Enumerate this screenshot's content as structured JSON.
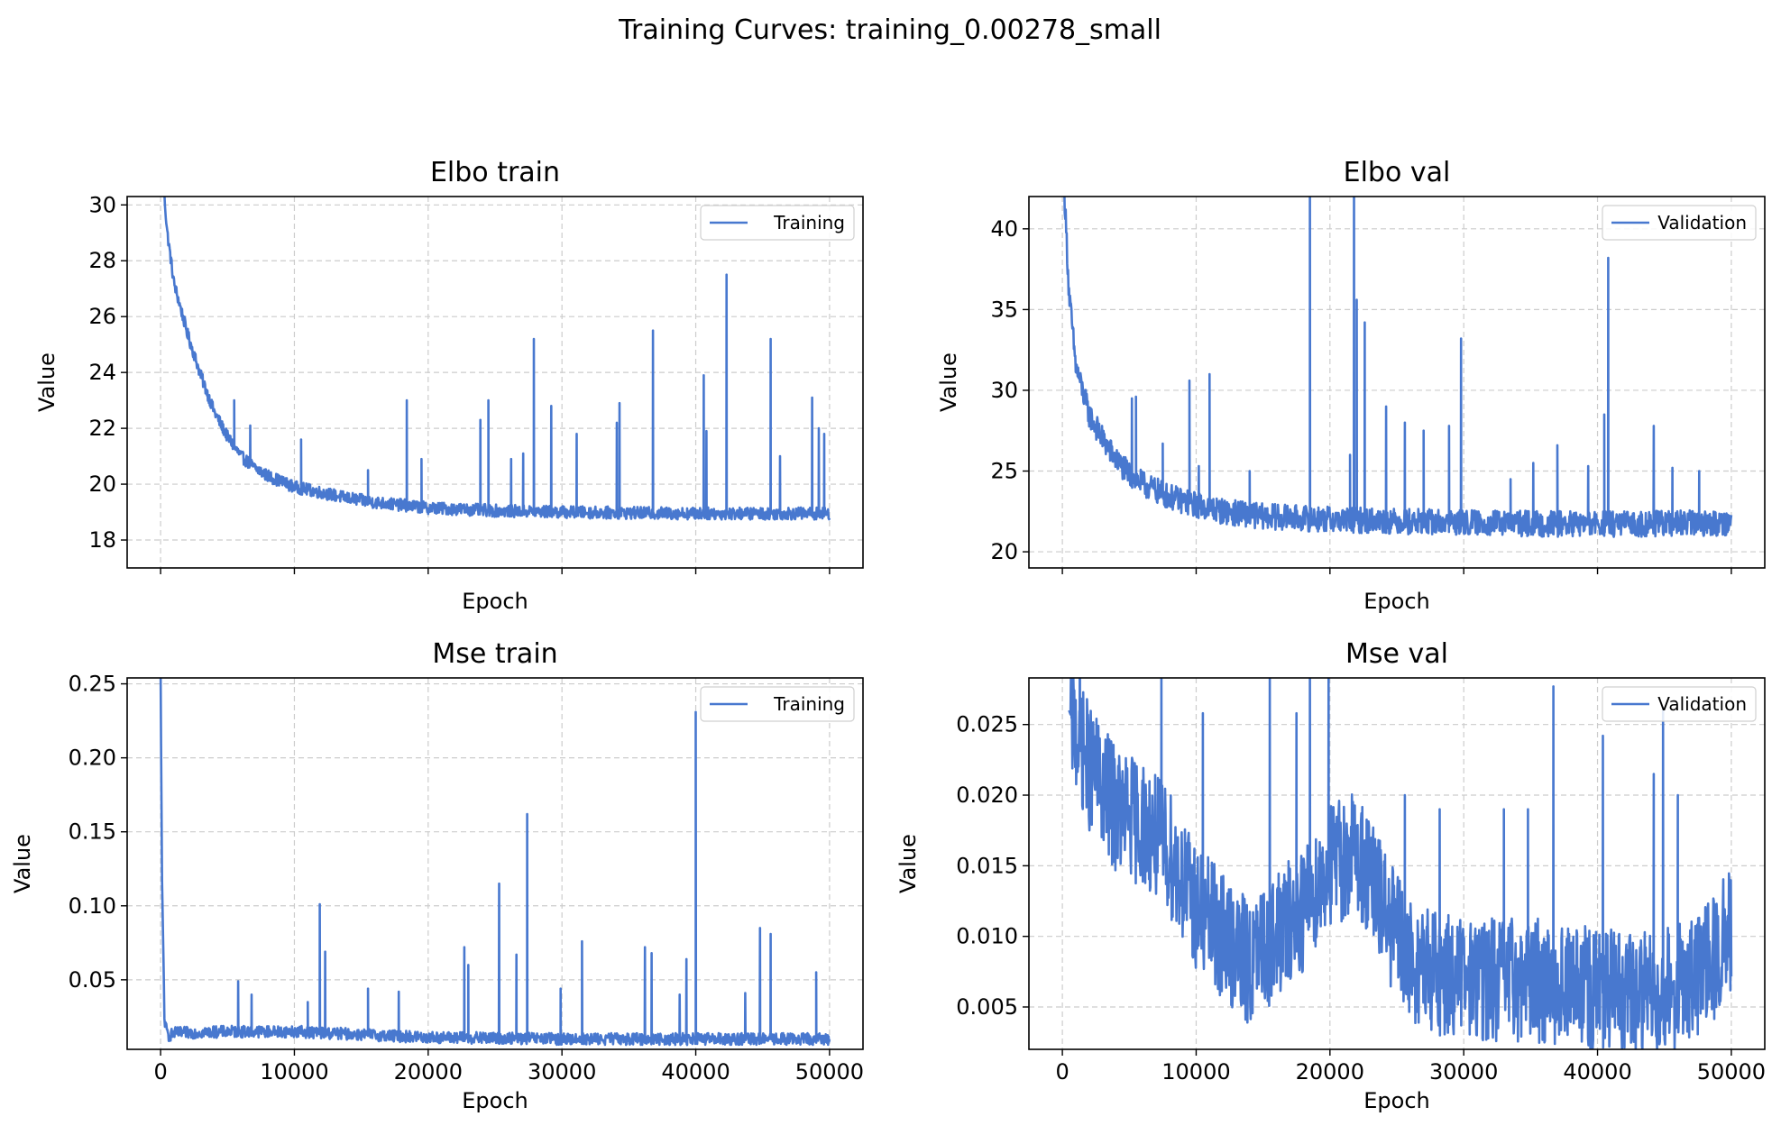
{
  "figure_title": "Training Curves: training_0.00278_small",
  "colors": {
    "line": "#4878cf",
    "grid": "#cccccc",
    "frame": "#000000"
  },
  "chart_data": [
    {
      "type": "line",
      "title": "Elbo train",
      "xlabel": "Epoch",
      "ylabel": "Value",
      "xlim": [
        -2500,
        52500
      ],
      "ylim": [
        17.0,
        30.3
      ],
      "xticks": [
        0,
        10000,
        20000,
        30000,
        40000,
        50000
      ],
      "xtick_labels": [
        "",
        "",
        "",
        "",
        "",
        ""
      ],
      "yticks": [
        18,
        20,
        22,
        24,
        26,
        28,
        30
      ],
      "ytick_labels": [
        "18",
        "20",
        "22",
        "24",
        "26",
        "28",
        "30"
      ],
      "grid": true,
      "legend": "upper right",
      "series": [
        {
          "name": "Training",
          "x": [
            0,
            500,
            1000,
            2000,
            3000,
            4000,
            5000,
            6000,
            7000,
            8000,
            9000,
            10000,
            12000,
            14000,
            16000,
            18000,
            20000,
            25000,
            30000,
            35000,
            40000,
            45000,
            50000
          ],
          "y": [
            32.0,
            29.0,
            27.2,
            25.4,
            23.9,
            22.6,
            21.7,
            21.0,
            20.6,
            20.3,
            20.1,
            19.9,
            19.7,
            19.5,
            19.35,
            19.25,
            19.15,
            19.05,
            19.0,
            18.97,
            18.95,
            18.95,
            18.95
          ],
          "noise": 0.22,
          "spikes": [
            [
              5500,
              23.0
            ],
            [
              6700,
              22.1
            ],
            [
              10500,
              21.6
            ],
            [
              15500,
              20.5
            ],
            [
              18400,
              23.0
            ],
            [
              19500,
              20.9
            ],
            [
              23900,
              22.3
            ],
            [
              24500,
              23.0
            ],
            [
              26200,
              20.9
            ],
            [
              27100,
              21.1
            ],
            [
              27900,
              25.2
            ],
            [
              29200,
              22.8
            ],
            [
              31100,
              21.8
            ],
            [
              34100,
              22.2
            ],
            [
              34300,
              22.9
            ],
            [
              36800,
              25.5
            ],
            [
              40600,
              23.9
            ],
            [
              40800,
              21.9
            ],
            [
              42300,
              27.5
            ],
            [
              45600,
              25.2
            ],
            [
              46300,
              21.0
            ],
            [
              48700,
              23.1
            ],
            [
              49200,
              22.0
            ],
            [
              49600,
              21.8
            ]
          ]
        }
      ]
    },
    {
      "type": "line",
      "title": "Elbo val",
      "xlabel": "Epoch",
      "ylabel": "Value",
      "xlim": [
        -2500,
        52500
      ],
      "ylim": [
        19.0,
        42.0
      ],
      "xticks": [
        0,
        10000,
        20000,
        30000,
        40000,
        50000
      ],
      "xtick_labels": [
        "",
        "",
        "",
        "",
        "",
        ""
      ],
      "yticks": [
        20,
        25,
        30,
        35,
        40
      ],
      "ytick_labels": [
        "20",
        "25",
        "30",
        "35",
        "40"
      ],
      "grid": true,
      "legend": "upper right",
      "series": [
        {
          "name": "Validation",
          "x": [
            0,
            500,
            1000,
            2000,
            3000,
            4000,
            5000,
            6000,
            7000,
            8000,
            10000,
            12000,
            15000,
            20000,
            25000,
            30000,
            40000,
            50000
          ],
          "y": [
            45.0,
            36.0,
            31.5,
            28.5,
            27.0,
            25.7,
            24.8,
            24.2,
            23.8,
            23.4,
            22.9,
            22.5,
            22.2,
            22.0,
            21.9,
            21.8,
            21.7,
            21.8
          ],
          "noise": 0.8,
          "spikes": [
            [
              5200,
              29.5
            ],
            [
              5500,
              29.6
            ],
            [
              7500,
              26.7
            ],
            [
              9500,
              30.6
            ],
            [
              10200,
              25.3
            ],
            [
              11000,
              31.0
            ],
            [
              14000,
              25.0
            ],
            [
              18500,
              43.0
            ],
            [
              21500,
              26.0
            ],
            [
              21800,
              44.0
            ],
            [
              22000,
              35.6
            ],
            [
              22600,
              34.2
            ],
            [
              24200,
              29.0
            ],
            [
              25600,
              28.0
            ],
            [
              27000,
              27.5
            ],
            [
              28900,
              27.8
            ],
            [
              29800,
              33.2
            ],
            [
              33500,
              24.5
            ],
            [
              35200,
              25.5
            ],
            [
              37000,
              26.6
            ],
            [
              39300,
              25.3
            ],
            [
              40500,
              28.5
            ],
            [
              40800,
              38.2
            ],
            [
              44200,
              27.8
            ],
            [
              45600,
              25.2
            ],
            [
              47600,
              25.0
            ]
          ]
        }
      ]
    },
    {
      "type": "line",
      "title": "Mse train",
      "xlabel": "Epoch",
      "ylabel": "Value",
      "xlim": [
        -2500,
        52500
      ],
      "ylim": [
        0.003,
        0.254
      ],
      "xticks": [
        0,
        10000,
        20000,
        30000,
        40000,
        50000
      ],
      "xtick_labels": [
        "0",
        "10000",
        "20000",
        "30000",
        "40000",
        "50000"
      ],
      "yticks": [
        0.05,
        0.1,
        0.15,
        0.2,
        0.25
      ],
      "ytick_labels": [
        "0.05",
        "0.10",
        "0.15",
        "0.20",
        "0.25"
      ],
      "grid": true,
      "legend": "upper right",
      "series": [
        {
          "name": "Training",
          "x": [
            0,
            100,
            300,
            600,
            1000,
            5000,
            10000,
            15000,
            20000,
            30000,
            40000,
            50000
          ],
          "y": [
            0.26,
            0.12,
            0.02,
            0.012,
            0.014,
            0.015,
            0.015,
            0.013,
            0.011,
            0.01,
            0.01,
            0.01
          ],
          "noise": 0.004,
          "spikes": [
            [
              5800,
              0.049
            ],
            [
              6800,
              0.04
            ],
            [
              11000,
              0.035
            ],
            [
              11900,
              0.101
            ],
            [
              12300,
              0.069
            ],
            [
              15500,
              0.044
            ],
            [
              17800,
              0.042
            ],
            [
              22700,
              0.072
            ],
            [
              23000,
              0.06
            ],
            [
              25300,
              0.115
            ],
            [
              26600,
              0.067
            ],
            [
              27400,
              0.162
            ],
            [
              29900,
              0.044
            ],
            [
              31500,
              0.076
            ],
            [
              36200,
              0.072
            ],
            [
              36700,
              0.068
            ],
            [
              38800,
              0.04
            ],
            [
              39300,
              0.064
            ],
            [
              40000,
              0.231
            ],
            [
              43700,
              0.041
            ],
            [
              44800,
              0.085
            ],
            [
              45600,
              0.081
            ],
            [
              49000,
              0.055
            ]
          ]
        }
      ]
    },
    {
      "type": "line",
      "title": "Mse val",
      "xlabel": "Epoch",
      "ylabel": "Value",
      "xlim": [
        -2500,
        52500
      ],
      "ylim": [
        0.002,
        0.0283
      ],
      "xticks": [
        0,
        10000,
        20000,
        30000,
        40000,
        50000
      ],
      "xtick_labels": [
        "0",
        "10000",
        "20000",
        "30000",
        "40000",
        "50000"
      ],
      "yticks": [
        0.005,
        0.01,
        0.015,
        0.02,
        0.025
      ],
      "ytick_labels": [
        "0.005",
        "0.010",
        "0.015",
        "0.020",
        "0.025"
      ],
      "grid": true,
      "legend": "upper right",
      "series": [
        {
          "name": "Validation",
          "x": [
            500,
            2000,
            4000,
            6000,
            8000,
            10000,
            12000,
            14000,
            16000,
            18000,
            20000,
            22000,
            24000,
            26000,
            28000,
            30000,
            32000,
            35000,
            38000,
            40000,
            43000,
            46000,
            48000,
            50000
          ],
          "y": [
            0.026,
            0.022,
            0.019,
            0.018,
            0.016,
            0.012,
            0.01,
            0.008,
            0.01,
            0.012,
            0.015,
            0.016,
            0.012,
            0.008,
            0.0075,
            0.007,
            0.007,
            0.007,
            0.0065,
            0.006,
            0.006,
            0.0065,
            0.0075,
            0.0105
          ],
          "noise": 0.0045,
          "spikes": [
            [
              700,
              0.029
            ],
            [
              1300,
              0.029
            ],
            [
              7400,
              0.029
            ],
            [
              10500,
              0.0258
            ],
            [
              15500,
              0.0283
            ],
            [
              17500,
              0.0258
            ],
            [
              18500,
              0.0283
            ],
            [
              19900,
              0.0283
            ],
            [
              25600,
              0.02
            ],
            [
              28200,
              0.019
            ],
            [
              33000,
              0.019
            ],
            [
              34800,
              0.019
            ],
            [
              36700,
              0.0277
            ],
            [
              40400,
              0.0242
            ],
            [
              44200,
              0.0215
            ],
            [
              44900,
              0.0262
            ],
            [
              46000,
              0.02
            ]
          ]
        }
      ]
    }
  ]
}
